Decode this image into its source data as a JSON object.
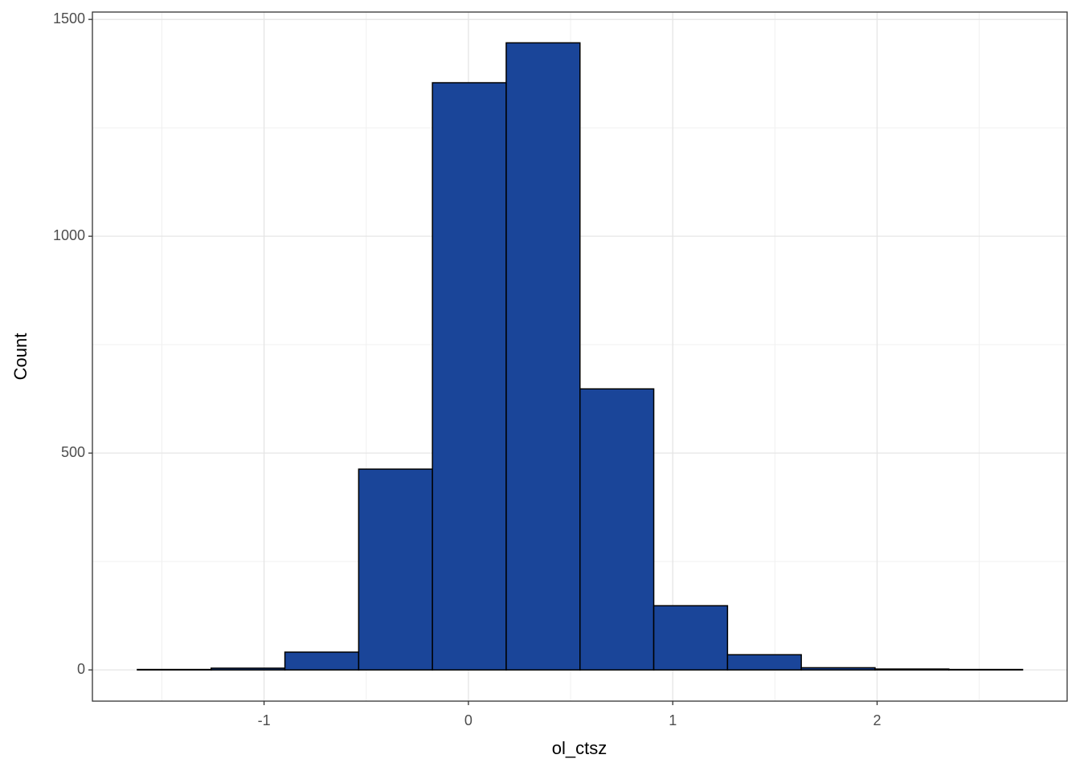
{
  "chart_data": {
    "type": "histogram",
    "x_label": "ol_ctsz",
    "y_label": "Count",
    "bins": [
      -1.62,
      -1.259,
      -0.898,
      -0.537,
      -0.176,
      0.185,
      0.546,
      0.907,
      1.268,
      1.629,
      1.99,
      2.351,
      2.712
    ],
    "values": [
      1,
      4,
      41,
      463,
      1354,
      1446,
      648,
      148,
      35,
      5,
      2,
      1
    ],
    "color": "#1a4599",
    "edge_color": "#000000",
    "xlim": [
      -1.84,
      2.93
    ],
    "ylim": [
      -72,
      1517
    ],
    "xticks": [
      -1,
      0,
      1,
      2
    ],
    "yticks": [
      0,
      500,
      1000,
      1500
    ],
    "minor_xticks": [
      -1.5,
      -0.5,
      0.5,
      1.5,
      2.5
    ],
    "minor_yticks": [
      250,
      750,
      1250
    ],
    "grid": true
  }
}
